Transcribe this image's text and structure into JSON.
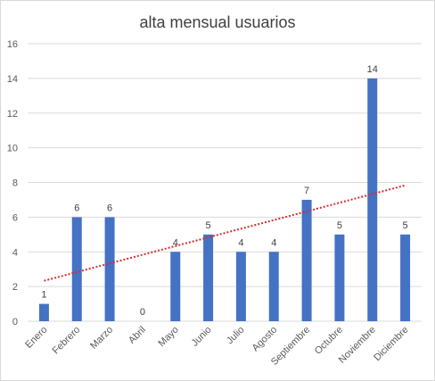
{
  "chart_data": {
    "type": "bar",
    "title": "alta mensual usuarios",
    "xlabel": "",
    "ylabel": "",
    "categories": [
      "Enero",
      "Febrero",
      "Marzo",
      "Abril",
      "Mayo",
      "Junio",
      "Julio",
      "Agosto",
      "Septiembre",
      "Octubre",
      "Noviembre",
      "Diciembre"
    ],
    "values": [
      1,
      6,
      6,
      0,
      4,
      5,
      4,
      4,
      7,
      5,
      14,
      5
    ],
    "ylim": [
      0,
      16
    ],
    "yticks": [
      0,
      2,
      4,
      6,
      8,
      10,
      12,
      14,
      16
    ],
    "grid": true,
    "legend": "none",
    "data_labels": true,
    "trendline": {
      "type": "linear",
      "style": "dotted"
    },
    "colors": {
      "bars": "#4472c4",
      "trendline": "#d62d2d",
      "grid": "#d9d9d9"
    }
  }
}
